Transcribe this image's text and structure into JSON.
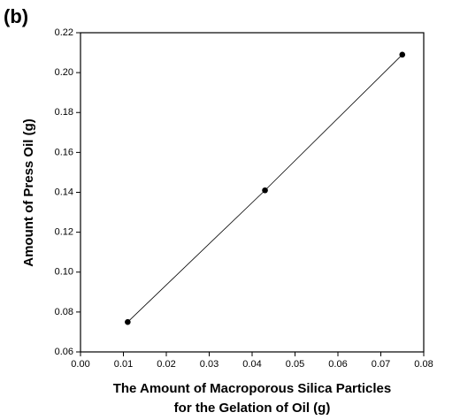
{
  "chart_data": {
    "type": "scatter",
    "panel_label": "(b)",
    "xlabel": [
      "The Amount of Macroporous Silica Particles",
      "for the Gelation of Oil (g)"
    ],
    "ylabel": "Amount of Press Oil (g)",
    "x": [
      0.011,
      0.043,
      0.075
    ],
    "series": [
      {
        "color": "#000000",
        "values": [
          0.075,
          0.141,
          0.209
        ]
      }
    ],
    "xlim": [
      0,
      0.08
    ],
    "xticks": [
      {
        "value": 0,
        "label": "0.00"
      },
      {
        "value": 0.01,
        "label": "0.01"
      },
      {
        "value": 0.02,
        "label": "0.02"
      },
      {
        "value": 0.03,
        "label": "0.03"
      },
      {
        "value": 0.04,
        "label": "0.04"
      },
      {
        "value": 0.05,
        "label": "0.05"
      },
      {
        "value": 0.06,
        "label": "0.06"
      },
      {
        "value": 0.07,
        "label": "0.07"
      },
      {
        "value": 0.08,
        "label": "0.08"
      }
    ],
    "ylim": [
      0.06,
      0.22
    ],
    "yticks": [
      {
        "value": 0.06,
        "label": "0.06"
      },
      {
        "value": 0.08,
        "label": "0.08"
      },
      {
        "value": 0.1,
        "label": "0.10"
      },
      {
        "value": 0.12,
        "label": "0.12"
      },
      {
        "value": 0.14,
        "label": "0.14"
      },
      {
        "value": 0.16,
        "label": "0.16"
      },
      {
        "value": 0.18,
        "label": "0.18"
      },
      {
        "value": 0.2,
        "label": "0.20"
      },
      {
        "value": 0.22,
        "label": "0.22"
      }
    ]
  }
}
